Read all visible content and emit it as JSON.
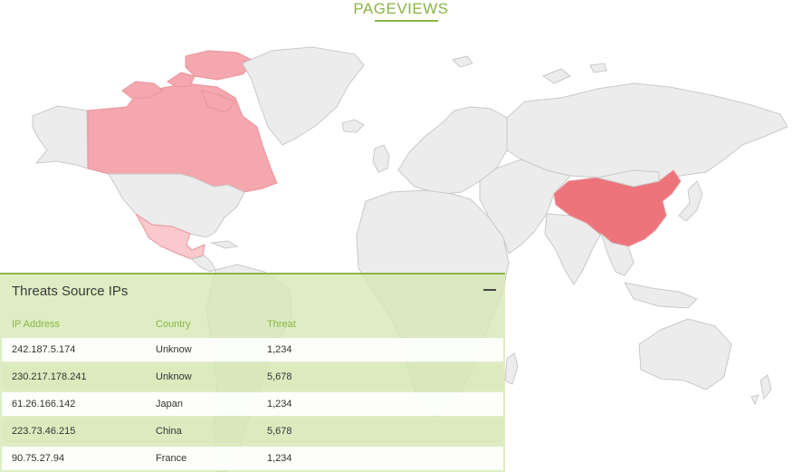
{
  "header": {
    "title": "PAGEVIEWS"
  },
  "map": {
    "highlight": {
      "canada": "#f4a7ae",
      "mexico": "#f9c9cd",
      "china": "#ee747b"
    },
    "base_color": "#ececec"
  },
  "panel": {
    "title": "Threats Source IPs",
    "collapse_icon": "minus-icon",
    "columns": {
      "ip": "IP Address",
      "country": "Country",
      "threat": "Threat"
    },
    "rows": [
      {
        "ip": "242.187.5.174",
        "country": "Unknow",
        "threat": "1,234"
      },
      {
        "ip": "230.217.178.241",
        "country": "Unknow",
        "threat": "5,678"
      },
      {
        "ip": "61.26.166.142",
        "country": "Japan",
        "threat": "1,234"
      },
      {
        "ip": "223.73.46.215",
        "country": "China",
        "threat": "5,678"
      },
      {
        "ip": "90.75.27.94",
        "country": "France",
        "threat": "1,234"
      }
    ]
  }
}
